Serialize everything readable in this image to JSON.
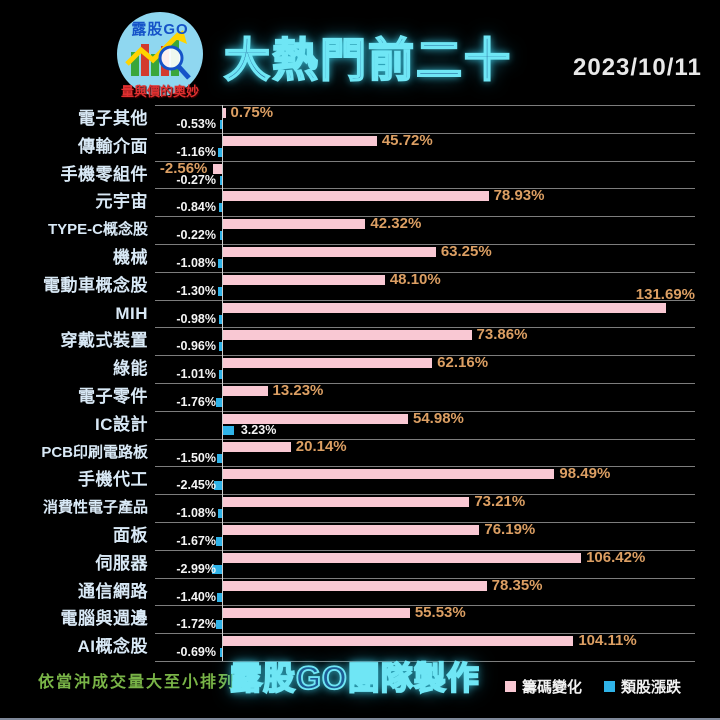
{
  "header": {
    "logo": {
      "text": "露股GO",
      "tagline": "量與價的奧妙"
    },
    "title": "大熱門前二十",
    "date": "2023/10/11"
  },
  "chart_data": {
    "type": "bar",
    "orientation": "horizontal",
    "title": "大熱門前二十",
    "date": "2023/10/11",
    "sort_note": "依當沖成交量大至小排列",
    "xlim": [
      -10,
      140
    ],
    "grid": "row-separators",
    "legend_position": "bottom-right",
    "categories": [
      "電子其他",
      "傳輸介面",
      "手機零組件",
      "元宇宙",
      "TYPE-C概念股",
      "機械",
      "電動車概念股",
      "MIH",
      "穿戴式裝置",
      "綠能",
      "電子零件",
      "IC設計",
      "PCB印刷電路板",
      "手機代工",
      "消費性電子產品",
      "面板",
      "伺服器",
      "通信網路",
      "電腦與週邊",
      "AI概念股"
    ],
    "series": [
      {
        "name": "籌碼變化",
        "color": "#f9c8d3",
        "label_color": "#dc9f63",
        "values": [
          0.75,
          45.72,
          -2.56,
          78.93,
          42.32,
          63.25,
          48.1,
          131.69,
          73.86,
          62.16,
          13.23,
          54.98,
          20.14,
          98.49,
          73.21,
          76.19,
          106.42,
          78.35,
          55.53,
          104.11
        ],
        "labels": [
          "0.75%",
          "45.72%",
          "-2.56%",
          "78.93%",
          "42.32%",
          "63.25%",
          "48.10%",
          "131.69%",
          "73.86%",
          "62.16%",
          "13.23%",
          "54.98%",
          "20.14%",
          "98.49%",
          "73.21%",
          "76.19%",
          "106.42%",
          "78.35%",
          "55.53%",
          "104.11%"
        ]
      },
      {
        "name": "類股漲跌",
        "color": "#2fb3e8",
        "label_color": "#f5f5f5",
        "values": [
          -0.53,
          -1.16,
          -0.27,
          -0.84,
          -0.22,
          -1.08,
          -1.3,
          -0.98,
          -0.96,
          -1.01,
          -1.76,
          3.23,
          -1.5,
          -2.45,
          -1.08,
          -1.67,
          -2.99,
          -1.4,
          -1.72,
          -0.69
        ],
        "labels": [
          "-0.53%",
          "-1.16%",
          "-0.27%",
          "-0.84%",
          "-0.22%",
          "-1.08%",
          "-1.30%",
          "-0.98%",
          "-0.96%",
          "-1.01%",
          "-1.76%",
          "3.23%",
          "-1.50%",
          "-2.45%",
          "-1.08%",
          "-1.67%",
          "-2.99%",
          "-1.40%",
          "-1.72%",
          "-0.69%"
        ]
      }
    ]
  },
  "footer": {
    "note": "依當沖成交量大至小排列",
    "credit": "露股GO團隊製作",
    "legend": [
      {
        "label": "籌碼變化",
        "color": "#f9c8d3"
      },
      {
        "label": "類股漲跌",
        "color": "#2fb3e8"
      }
    ]
  }
}
